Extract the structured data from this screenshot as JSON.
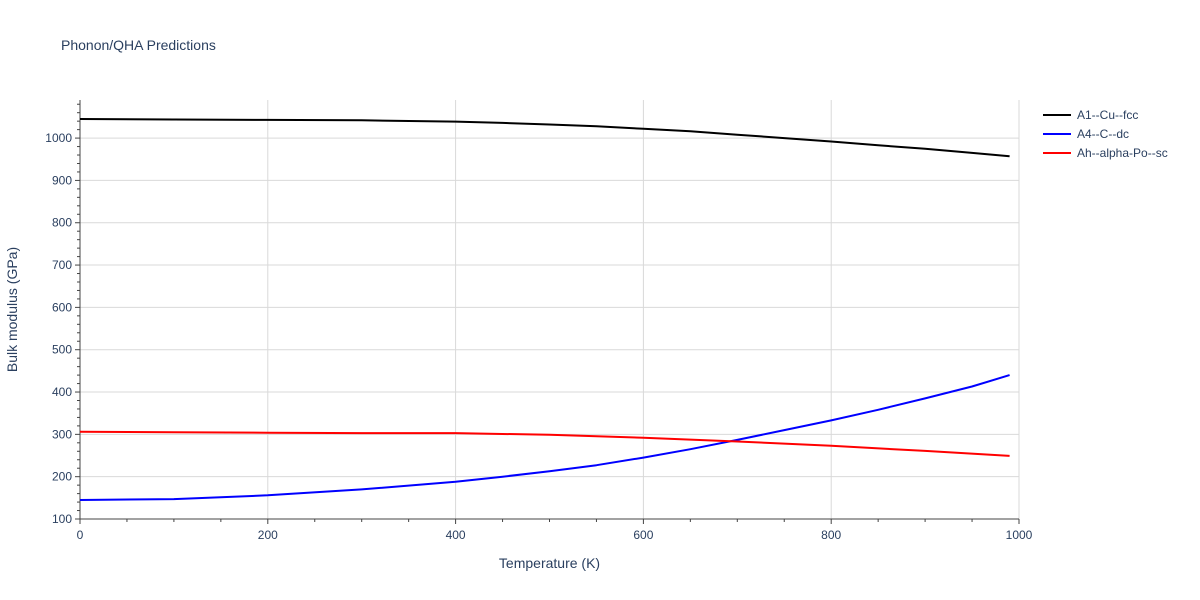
{
  "chart_data": {
    "type": "line",
    "title": "Phonon/QHA Predictions",
    "xlabel": "Temperature (K)",
    "ylabel": "Bulk modulus (GPa)",
    "xlim": [
      0,
      1000
    ],
    "ylim": [
      100,
      1090
    ],
    "x_ticks": [
      0,
      200,
      400,
      600,
      800,
      1000
    ],
    "y_ticks": [
      100,
      200,
      300,
      400,
      500,
      600,
      700,
      800,
      900,
      1000
    ],
    "grid": true,
    "legend_position": "top-right",
    "series": [
      {
        "name": "A1--Cu--fcc",
        "color": "#000000",
        "x": [
          0,
          100,
          200,
          300,
          400,
          450,
          500,
          550,
          600,
          650,
          700,
          750,
          800,
          850,
          900,
          950,
          990
        ],
        "y": [
          1045,
          1044,
          1043,
          1042,
          1039,
          1036,
          1032,
          1028,
          1022,
          1016,
          1008,
          1000,
          992,
          983,
          975,
          965,
          957
        ]
      },
      {
        "name": "A4--C--dc",
        "color": "#0000ff",
        "x": [
          0,
          100,
          200,
          300,
          400,
          450,
          500,
          550,
          600,
          650,
          700,
          750,
          800,
          850,
          900,
          950,
          990
        ],
        "y": [
          145,
          147,
          156,
          170,
          188,
          200,
          213,
          227,
          245,
          265,
          287,
          310,
          333,
          358,
          385,
          413,
          440
        ]
      },
      {
        "name": "Ah--alpha-Po--sc",
        "color": "#ff0000",
        "x": [
          0,
          100,
          200,
          300,
          400,
          500,
          600,
          700,
          800,
          900,
          990
        ],
        "y": [
          306,
          305,
          304,
          303,
          303,
          299,
          292,
          283,
          273,
          261,
          249
        ]
      }
    ]
  }
}
